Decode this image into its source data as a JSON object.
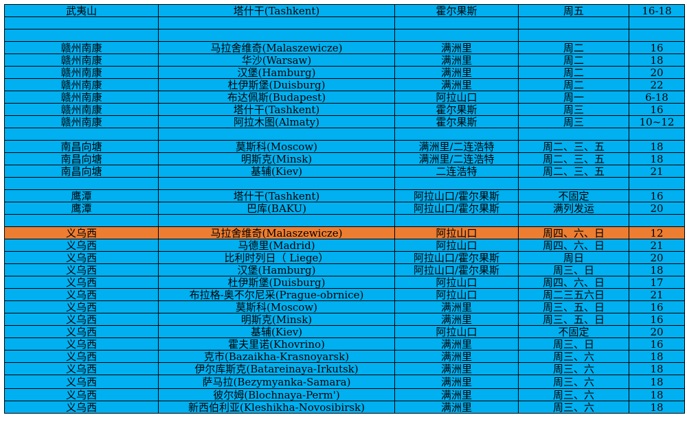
{
  "colors": {
    "row_default": "#00b0f0",
    "row_highlight": "#ed7d31"
  },
  "rows": [
    {
      "type": "data",
      "origin": "武夷山",
      "destination": "塔什干(Tashkent)",
      "port": "霍尔果斯",
      "days": "周五",
      "transit": "16-18"
    },
    {
      "type": "blank"
    },
    {
      "type": "blank"
    },
    {
      "type": "data",
      "origin": "赣州南康",
      "destination": "马拉舍维奇(Malaszewicze)",
      "port": "满洲里",
      "days": "周二",
      "transit": "16"
    },
    {
      "type": "data",
      "origin": "赣州南康",
      "destination": "华沙(Warsaw)",
      "port": "满洲里",
      "days": "周二",
      "transit": "18"
    },
    {
      "type": "data",
      "origin": "赣州南康",
      "destination": "汉堡(Hamburg)",
      "port": "满洲里",
      "days": "周二",
      "transit": "20"
    },
    {
      "type": "data",
      "origin": "赣州南康",
      "destination": "杜伊斯堡(Duisburg)",
      "port": "满洲里",
      "days": "周二",
      "transit": "22"
    },
    {
      "type": "data",
      "origin": "赣州南康",
      "destination": "布达佩斯(Budapest)",
      "port": "阿拉山口",
      "days": "周一",
      "transit": "6-18"
    },
    {
      "type": "data",
      "origin": "赣州南康",
      "destination": "塔什干(Tashkent)",
      "port": "霍尔果斯",
      "days": "周三",
      "transit": "16"
    },
    {
      "type": "data",
      "origin": "赣州南康",
      "destination": "阿拉木图(Almaty)",
      "port": "霍尔果斯",
      "days": "周三",
      "transit": "10~12"
    },
    {
      "type": "blank"
    },
    {
      "type": "data",
      "origin": "南昌向塘",
      "destination": "莫斯科(Moscow)",
      "port": "满洲里/二连浩特",
      "days": "周二、三、五",
      "transit": "18"
    },
    {
      "type": "data",
      "origin": "南昌向塘",
      "destination": "明斯克(Minsk)",
      "port": "满洲里/二连浩特",
      "days": "周二、三、五",
      "transit": "18"
    },
    {
      "type": "data",
      "origin": "南昌向塘",
      "destination": "基辅(Kiev)",
      "port": "二连浩特",
      "days": "周二、三、五",
      "transit": "21"
    },
    {
      "type": "blank"
    },
    {
      "type": "data",
      "origin": "鹰潭",
      "destination": "塔什干(Tashkent)",
      "port": "阿拉山口/霍尔果斯",
      "days": "不固定",
      "transit": "16"
    },
    {
      "type": "data",
      "origin": "鹰潭",
      "destination": "巴库(BAKU)",
      "port": "阿拉山口/霍尔果斯",
      "days": "满列发运",
      "transit": "20"
    },
    {
      "type": "blank"
    },
    {
      "type": "data",
      "highlight": true,
      "origin": "义乌西",
      "destination": "马拉舍维奇(Malaszewicze)",
      "port": "阿拉山口",
      "days": "周四、六、日",
      "transit": "12"
    },
    {
      "type": "data",
      "origin": "义乌西",
      "destination": "马德里(Madrid)",
      "port": "阿拉山口",
      "days": "周四、六、日",
      "transit": "21"
    },
    {
      "type": "data",
      "origin": "义乌西",
      "destination": "比利时列日（ Liege）",
      "port": "阿拉山口/霍尔果斯",
      "days": "周日",
      "transit": "20"
    },
    {
      "type": "data",
      "origin": "义乌西",
      "destination": "汉堡(Hamburg)",
      "port": "阿拉山口/霍尔果斯",
      "days": "周三、日",
      "transit": "18"
    },
    {
      "type": "data",
      "origin": "义乌西",
      "destination": "杜伊斯堡(Duisburg)",
      "port": "阿拉山口",
      "days": "周四、六、日",
      "transit": "17"
    },
    {
      "type": "data",
      "origin": "义乌西",
      "destination": "布拉格-奥不尔尼采(Prague-obrnice)",
      "port": "阿拉山口",
      "days": "周二三五六日",
      "transit": "21"
    },
    {
      "type": "data",
      "origin": "义乌西",
      "destination": "莫斯科(Moscow)",
      "port": "满洲里",
      "days": "周三、五、日",
      "transit": "16"
    },
    {
      "type": "data",
      "origin": "义乌西",
      "destination": "明斯克(Minsk)",
      "port": "满洲里",
      "days": "周三、五、日",
      "transit": "16"
    },
    {
      "type": "data",
      "origin": "义乌西",
      "destination": "基辅(Kiev)",
      "port": "阿拉山口",
      "days": "不固定",
      "transit": "20"
    },
    {
      "type": "data",
      "origin": "义乌西",
      "destination": "霍夫里诺(Khovrino)",
      "port": "满洲里",
      "days": "周三、日",
      "transit": "16"
    },
    {
      "type": "data",
      "origin": "义乌西",
      "destination": "克市(Bazaikha-Krasnoyarsk)",
      "port": "满洲里",
      "days": "周三、六",
      "transit": "18"
    },
    {
      "type": "data",
      "origin": "义乌西",
      "destination": "伊尔库斯克(Batareinaya-Irkutsk)",
      "port": "满洲里",
      "days": "周三、六",
      "transit": "18"
    },
    {
      "type": "data",
      "tall": true,
      "origin": "义乌西",
      "destination": "萨马拉(Bezymyanka-Samara)",
      "port": "满洲里",
      "days": "周三、六",
      "transit": "18"
    },
    {
      "type": "data",
      "origin": "义乌西",
      "destination": "彼尔姆(Blochnaya-Perm')",
      "port": "满洲里",
      "days": "周三、六",
      "transit": "18"
    },
    {
      "type": "data",
      "origin": "义乌西",
      "destination": "新西伯利亚(Kleshikha-Novosibirsk)",
      "port": "满洲里",
      "days": "周三、六",
      "transit": "18"
    }
  ]
}
